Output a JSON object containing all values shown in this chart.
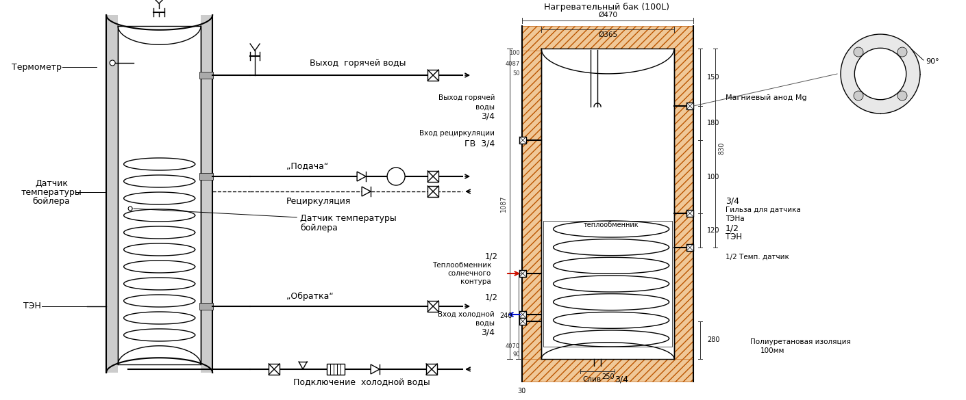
{
  "bg_color": "#ffffff",
  "line_color": "#000000",
  "title1": "Нагревательный бак (100L)",
  "d470": "Ø470",
  "d365": "Ø365",
  "dim_1087": "1087",
  "dim_150": "150",
  "dim_180": "180",
  "dim_100": "100",
  "dim_120": "120",
  "dim_830": "830",
  "dim_280": "280",
  "dim_240": "240",
  "dim_250": "250",
  "dim_30": "30",
  "angle_90": "90°",
  "magn_anode": "Магниевый анод Mg",
  "sleeve_34": "3/4",
  "sleeve_label1": "Гильза для датчика",
  "sleeve_label2": "ТЭНа",
  "ten_label": "ТЭН",
  "temp_sensor_label": "1/2 Темп. датчик",
  "polyurethane1": "Полиуретановая изоляция",
  "polyurethane2": "100мм",
  "heatexch_label": "теплообменник",
  "hot_out1": "Выход горячей",
  "hot_out2": "воды",
  "hot_out3": "3/4",
  "recirc_in1": "Вход рециркуляции",
  "recirc_in2": "ГВ  3/4",
  "solar1": "Теплообменник",
  "solar2": "солнечного",
  "solar3": "контура",
  "cold_in1": "Вход холодной",
  "cold_in2": "воды",
  "cold_in3": "3/4",
  "drain_label": "Слив",
  "drain_34": "3/4",
  "thermometer": "Термометр",
  "sensor_left1": "Датчик",
  "sensor_left2": "температуры",
  "sensor_left3": "бойлера",
  "ten_left": "ТЭН",
  "hot_water_right": "Выход  горячей воды",
  "podacha": "„Подача“",
  "recirc_label": "Рециркуляция",
  "sensor_right1": "Датчик температуры",
  "sensor_right2": "бойлера",
  "obratka": "„Обратка“",
  "cold_connect": "Подключение  холодной воды",
  "half_12": "1/2"
}
